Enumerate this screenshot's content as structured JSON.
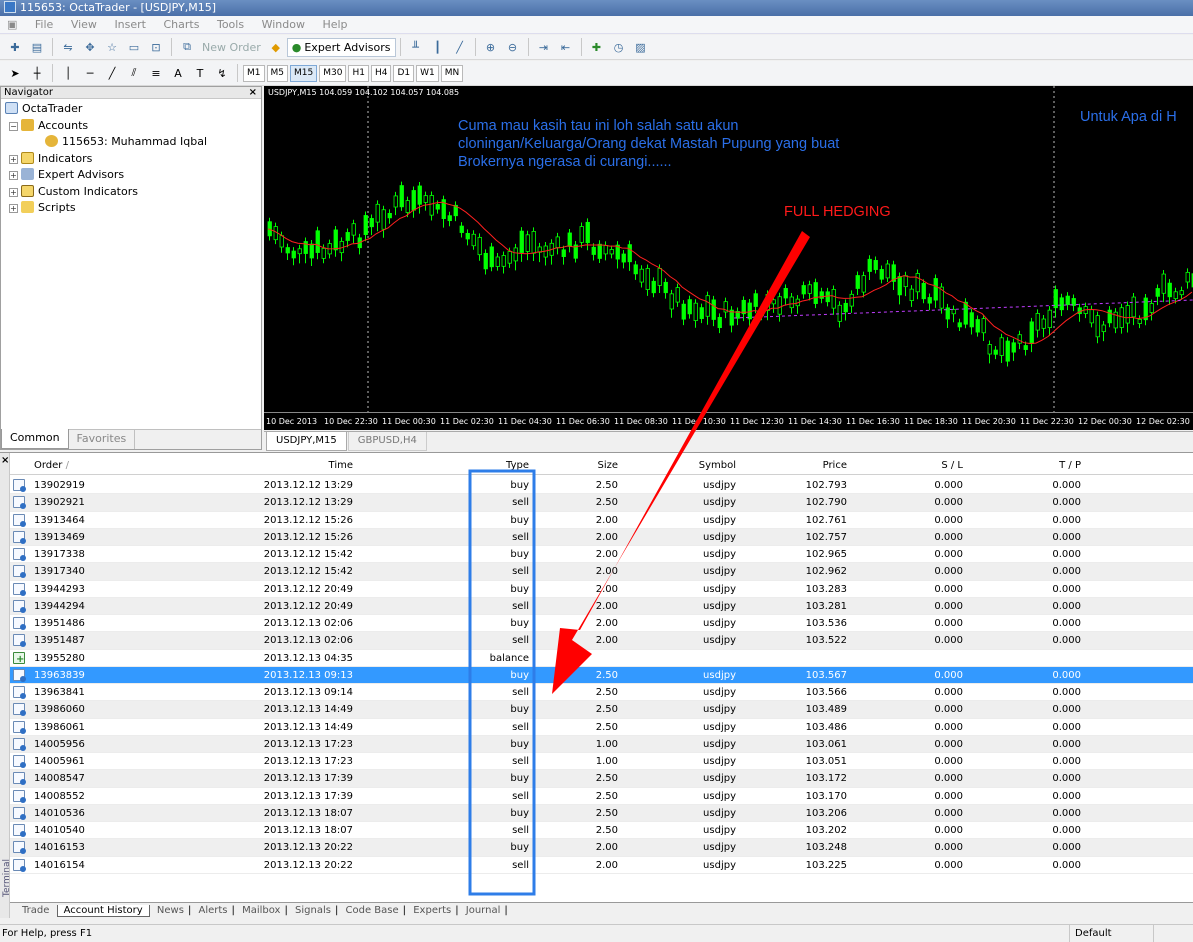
{
  "window": {
    "title": "115653: OctaTrader - [USDJPY,M15]"
  },
  "menu": [
    "File",
    "View",
    "Insert",
    "Charts",
    "Tools",
    "Window",
    "Help"
  ],
  "toolbar": {
    "new_order": "New Order",
    "expert_advisors": "Expert Advisors",
    "timeframes": [
      "M1",
      "M5",
      "M15",
      "M30",
      "H1",
      "H4",
      "D1",
      "W1",
      "MN"
    ],
    "active_timeframe": "M15"
  },
  "navigator": {
    "title": "Navigator",
    "root": "OctaTrader",
    "accounts": "Accounts",
    "account": "115653: Muhammad Iqbal",
    "items": [
      "Indicators",
      "Expert Advisors",
      "Custom Indicators",
      "Scripts"
    ],
    "tabs": {
      "common": "Common",
      "favorites": "Favorites"
    }
  },
  "chart": {
    "info": "USDJPY,M15  104.059 104.102 104.057 104.085",
    "annotation_main": "Cuma mau kasih tau ini loh salah satu akun cloningan/Keluarga/Orang dekat Mastah Pupung yang buat Brokernya ngerasa di curangi......",
    "annotation_right": "Untuk Apa di H",
    "annotation_hedge": "FULL HEDGING",
    "time_labels": [
      "10 Dec 2013",
      "10 Dec 22:30",
      "11 Dec 00:30",
      "11 Dec 02:30",
      "11 Dec 04:30",
      "11 Dec 06:30",
      "11 Dec 08:30",
      "11 Dec 10:30",
      "11 Dec 12:30",
      "11 Dec 14:30",
      "11 Dec 16:30",
      "11 Dec 18:30",
      "11 Dec 20:30",
      "11 Dec 22:30",
      "12 Dec 00:30",
      "12 Dec 02:30"
    ],
    "tabs": [
      "USDJPY,M15",
      "GBPUSD,H4"
    ],
    "colors": {
      "bull": "#00ff00",
      "ma": "#ff2020",
      "annotation": "#2b6fe8",
      "arrow": "#ff0000",
      "highlight": "#2e7de8"
    }
  },
  "terminal": {
    "headers": {
      "order": "Order",
      "time": "Time",
      "type": "Type",
      "size": "Size",
      "symbol": "Symbol",
      "price": "Price",
      "sl": "S / L",
      "tp": "T / P"
    },
    "rows": [
      {
        "order": "13902919",
        "time": "2013.12.12 13:29",
        "type": "buy",
        "size": "2.50",
        "symbol": "usdjpy",
        "price": "102.793",
        "sl": "0.000",
        "tp": "0.000"
      },
      {
        "order": "13902921",
        "time": "2013.12.12 13:29",
        "type": "sell",
        "size": "2.50",
        "symbol": "usdjpy",
        "price": "102.790",
        "sl": "0.000",
        "tp": "0.000"
      },
      {
        "order": "13913464",
        "time": "2013.12.12 15:26",
        "type": "buy",
        "size": "2.00",
        "symbol": "usdjpy",
        "price": "102.761",
        "sl": "0.000",
        "tp": "0.000"
      },
      {
        "order": "13913469",
        "time": "2013.12.12 15:26",
        "type": "sell",
        "size": "2.00",
        "symbol": "usdjpy",
        "price": "102.757",
        "sl": "0.000",
        "tp": "0.000"
      },
      {
        "order": "13917338",
        "time": "2013.12.12 15:42",
        "type": "buy",
        "size": "2.00",
        "symbol": "usdjpy",
        "price": "102.965",
        "sl": "0.000",
        "tp": "0.000"
      },
      {
        "order": "13917340",
        "time": "2013.12.12 15:42",
        "type": "sell",
        "size": "2.00",
        "symbol": "usdjpy",
        "price": "102.962",
        "sl": "0.000",
        "tp": "0.000"
      },
      {
        "order": "13944293",
        "time": "2013.12.12 20:49",
        "type": "buy",
        "size": "2.00",
        "symbol": "usdjpy",
        "price": "103.283",
        "sl": "0.000",
        "tp": "0.000"
      },
      {
        "order": "13944294",
        "time": "2013.12.12 20:49",
        "type": "sell",
        "size": "2.00",
        "symbol": "usdjpy",
        "price": "103.281",
        "sl": "0.000",
        "tp": "0.000"
      },
      {
        "order": "13951486",
        "time": "2013.12.13 02:06",
        "type": "buy",
        "size": "2.00",
        "symbol": "usdjpy",
        "price": "103.536",
        "sl": "0.000",
        "tp": "0.000"
      },
      {
        "order": "13951487",
        "time": "2013.12.13 02:06",
        "type": "sell",
        "size": "2.00",
        "symbol": "usdjpy",
        "price": "103.522",
        "sl": "0.000",
        "tp": "0.000"
      },
      {
        "order": "13955280",
        "time": "2013.12.13 04:35",
        "type": "balance",
        "size": "",
        "symbol": "",
        "price": "",
        "sl": "",
        "tp": "",
        "balance": true
      },
      {
        "order": "13963839",
        "time": "2013.12.13 09:13",
        "type": "buy",
        "size": "2.50",
        "symbol": "usdjpy",
        "price": "103.567",
        "sl": "0.000",
        "tp": "0.000",
        "selected": true
      },
      {
        "order": "13963841",
        "time": "2013.12.13 09:14",
        "type": "sell",
        "size": "2.50",
        "symbol": "usdjpy",
        "price": "103.566",
        "sl": "0.000",
        "tp": "0.000"
      },
      {
        "order": "13986060",
        "time": "2013.12.13 14:49",
        "type": "buy",
        "size": "2.50",
        "symbol": "usdjpy",
        "price": "103.489",
        "sl": "0.000",
        "tp": "0.000"
      },
      {
        "order": "13986061",
        "time": "2013.12.13 14:49",
        "type": "sell",
        "size": "2.50",
        "symbol": "usdjpy",
        "price": "103.486",
        "sl": "0.000",
        "tp": "0.000"
      },
      {
        "order": "14005956",
        "time": "2013.12.13 17:23",
        "type": "buy",
        "size": "1.00",
        "symbol": "usdjpy",
        "price": "103.061",
        "sl": "0.000",
        "tp": "0.000"
      },
      {
        "order": "14005961",
        "time": "2013.12.13 17:23",
        "type": "sell",
        "size": "1.00",
        "symbol": "usdjpy",
        "price": "103.051",
        "sl": "0.000",
        "tp": "0.000"
      },
      {
        "order": "14008547",
        "time": "2013.12.13 17:39",
        "type": "buy",
        "size": "2.50",
        "symbol": "usdjpy",
        "price": "103.172",
        "sl": "0.000",
        "tp": "0.000"
      },
      {
        "order": "14008552",
        "time": "2013.12.13 17:39",
        "type": "sell",
        "size": "2.50",
        "symbol": "usdjpy",
        "price": "103.170",
        "sl": "0.000",
        "tp": "0.000"
      },
      {
        "order": "14010536",
        "time": "2013.12.13 18:07",
        "type": "buy",
        "size": "2.50",
        "symbol": "usdjpy",
        "price": "103.206",
        "sl": "0.000",
        "tp": "0.000"
      },
      {
        "order": "14010540",
        "time": "2013.12.13 18:07",
        "type": "sell",
        "size": "2.50",
        "symbol": "usdjpy",
        "price": "103.202",
        "sl": "0.000",
        "tp": "0.000"
      },
      {
        "order": "14016153",
        "time": "2013.12.13 20:22",
        "type": "buy",
        "size": "2.00",
        "symbol": "usdjpy",
        "price": "103.248",
        "sl": "0.000",
        "tp": "0.000"
      },
      {
        "order": "14016154",
        "time": "2013.12.13 20:22",
        "type": "sell",
        "size": "2.00",
        "symbol": "usdjpy",
        "price": "103.225",
        "sl": "0.000",
        "tp": "0.000"
      }
    ],
    "tabs": [
      "Trade",
      "Account History",
      "News",
      "Alerts",
      "Mailbox",
      "Signals",
      "Code Base",
      "Experts",
      "Journal"
    ],
    "active_tab": "Account History",
    "side_label": "Terminal"
  },
  "status": {
    "help": "For Help, press F1",
    "profile": "Default"
  }
}
